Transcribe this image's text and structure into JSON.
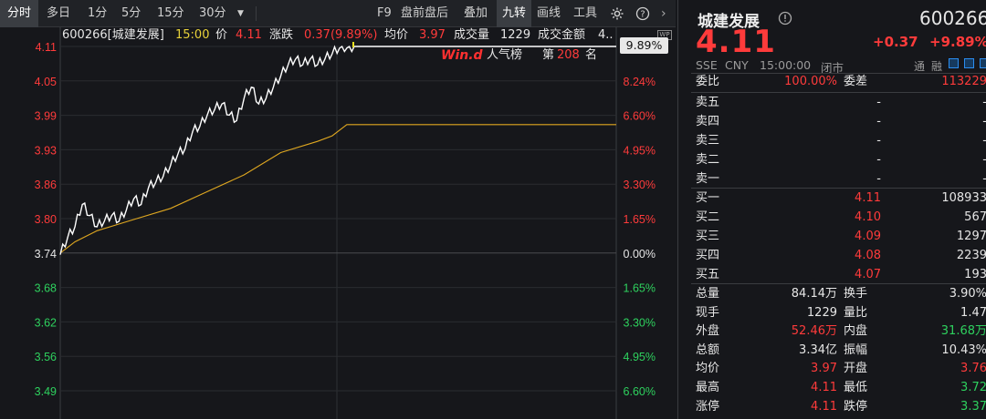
{
  "toolbar": {
    "periods": [
      "分时",
      "多日",
      "1分",
      "5分",
      "15分",
      "30分"
    ],
    "active_period": "分时",
    "items": [
      "F9",
      "盘前盘后",
      "叠加",
      "九转",
      "画线",
      "工具"
    ],
    "active_item": "九转"
  },
  "info": {
    "code_name": "600266[城建发展]",
    "time": "15:00",
    "price_label": "价",
    "price": "4.11",
    "change_label": "涨跌",
    "change": "0.37(9.89%)",
    "avg_label": "均价",
    "avg": "3.97",
    "volume_label": "成交量",
    "volume": "1229",
    "amount_label": "成交金额",
    "amount": "4..",
    "pct_badge": "9.89%"
  },
  "popularity": {
    "brand": "Win.d",
    "label": "人气榜",
    "rank_prefix": "第",
    "rank": "208",
    "rank_suffix": "名"
  },
  "chart_data": {
    "type": "line",
    "prev_close": 3.74,
    "ylim": [
      3.43,
      4.12
    ],
    "price_ticks": [
      {
        "v": "4.11",
        "pct": "9.89%",
        "c": "red"
      },
      {
        "v": "4.05",
        "pct": "8.24%",
        "c": "red"
      },
      {
        "v": "3.99",
        "pct": "6.60%",
        "c": "red"
      },
      {
        "v": "3.93",
        "pct": "4.95%",
        "c": "red"
      },
      {
        "v": "3.86",
        "pct": "3.30%",
        "c": "red"
      },
      {
        "v": "3.80",
        "pct": "1.65%",
        "c": "red"
      },
      {
        "v": "3.74",
        "pct": "0.00%",
        "c": "white"
      },
      {
        "v": "3.68",
        "pct": "1.65%",
        "c": "green"
      },
      {
        "v": "3.62",
        "pct": "3.30%",
        "c": "green"
      },
      {
        "v": "3.56",
        "pct": "4.95%",
        "c": "green"
      },
      {
        "v": "3.49",
        "pct": "6.60%",
        "c": "green"
      }
    ],
    "series": [
      {
        "name": "价",
        "color": "#ffffff",
        "points": [
          [
            0,
            3.74
          ],
          [
            1,
            3.77
          ],
          [
            2,
            3.79
          ],
          [
            3,
            3.83
          ],
          [
            4,
            3.81
          ],
          [
            5,
            3.79
          ],
          [
            6,
            3.8
          ],
          [
            7,
            3.81
          ],
          [
            8,
            3.8
          ],
          [
            9,
            3.82
          ],
          [
            10,
            3.84
          ],
          [
            11,
            3.83
          ],
          [
            12,
            3.86
          ],
          [
            13,
            3.87
          ],
          [
            14,
            3.88
          ],
          [
            15,
            3.9
          ],
          [
            16,
            3.92
          ],
          [
            17,
            3.93
          ],
          [
            18,
            3.96
          ],
          [
            19,
            3.97
          ],
          [
            20,
            3.99
          ],
          [
            21,
            4.0
          ],
          [
            22,
            4.01
          ],
          [
            23,
            3.99
          ],
          [
            24,
            3.98
          ],
          [
            25,
            4.02
          ],
          [
            26,
            4.04
          ],
          [
            27,
            4.01
          ],
          [
            28,
            4.02
          ],
          [
            29,
            4.04
          ],
          [
            30,
            4.06
          ],
          [
            31,
            4.08
          ],
          [
            32,
            4.09
          ],
          [
            33,
            4.08
          ],
          [
            34,
            4.09
          ],
          [
            35,
            4.08
          ],
          [
            36,
            4.09
          ],
          [
            37,
            4.1
          ],
          [
            38,
            4.11
          ],
          [
            39,
            4.11
          ],
          [
            40,
            4.11
          ],
          [
            48,
            4.11
          ],
          [
            60,
            4.11
          ],
          [
            80,
            4.11
          ],
          [
            100,
            4.11
          ],
          [
            120,
            4.11
          ],
          [
            240,
            4.11
          ]
        ]
      },
      {
        "name": "均价",
        "color": "#e0a820",
        "points": [
          [
            0,
            3.74
          ],
          [
            2,
            3.76
          ],
          [
            5,
            3.78
          ],
          [
            10,
            3.8
          ],
          [
            15,
            3.82
          ],
          [
            20,
            3.85
          ],
          [
            25,
            3.88
          ],
          [
            30,
            3.92
          ],
          [
            35,
            3.94
          ],
          [
            37,
            3.95
          ],
          [
            38,
            3.96
          ],
          [
            39,
            3.97
          ],
          [
            45,
            3.97
          ],
          [
            60,
            3.97
          ],
          [
            100,
            3.97
          ],
          [
            140,
            3.97
          ],
          [
            180,
            3.97
          ],
          [
            240,
            3.97
          ]
        ]
      }
    ]
  },
  "quote": {
    "name": "城建发展",
    "code": "600266",
    "price": "4.11",
    "change": "+0.37",
    "change_pct": "+9.89%",
    "exchange": "SSE",
    "currency": "CNY",
    "time": "15:00:00",
    "status": "闭市",
    "tags": [
      "通",
      "融"
    ],
    "weibi_label": "委比",
    "weibi": "100.00%",
    "weicha_label": "委差",
    "weicha": "113229",
    "asks": [
      {
        "label": "卖五",
        "price": "-",
        "vol": "-"
      },
      {
        "label": "卖四",
        "price": "-",
        "vol": "-"
      },
      {
        "label": "卖三",
        "price": "-",
        "vol": "-"
      },
      {
        "label": "卖二",
        "price": "-",
        "vol": "-"
      },
      {
        "label": "卖一",
        "price": "-",
        "vol": "-"
      }
    ],
    "bids": [
      {
        "label": "买一",
        "price": "4.11",
        "vol": "108933"
      },
      {
        "label": "买二",
        "price": "4.10",
        "vol": "567"
      },
      {
        "label": "买三",
        "price": "4.09",
        "vol": "1297"
      },
      {
        "label": "买四",
        "price": "4.08",
        "vol": "2239"
      },
      {
        "label": "买五",
        "price": "4.07",
        "vol": "193"
      }
    ],
    "stats": [
      {
        "l1": "总量",
        "v1": "84.14万",
        "c1": "white",
        "l2": "换手",
        "v2": "3.90%",
        "c2": "white"
      },
      {
        "l1": "现手",
        "v1": "1229",
        "c1": "white",
        "l2": "量比",
        "v2": "1.47",
        "c2": "white"
      },
      {
        "l1": "外盘",
        "v1": "52.46万",
        "c1": "red",
        "l2": "内盘",
        "v2": "31.68万",
        "c2": "green"
      },
      {
        "l1": "总额",
        "v1": "3.34亿",
        "c1": "white",
        "l2": "振幅",
        "v2": "10.43%",
        "c2": "white"
      },
      {
        "l1": "均价",
        "v1": "3.97",
        "c1": "red",
        "l2": "开盘",
        "v2": "3.76",
        "c2": "red"
      },
      {
        "l1": "最高",
        "v1": "4.11",
        "c1": "red",
        "l2": "最低",
        "v2": "3.72",
        "c2": "green"
      },
      {
        "l1": "涨停",
        "v1": "4.11",
        "c1": "red",
        "l2": "跌停",
        "v2": "3.37",
        "c2": "green"
      }
    ]
  },
  "colors": {
    "up": "#ff3b3b",
    "down": "#2ed15e",
    "price_line": "#ffffff",
    "avg_line": "#e0a820",
    "bg": "#16171b"
  }
}
